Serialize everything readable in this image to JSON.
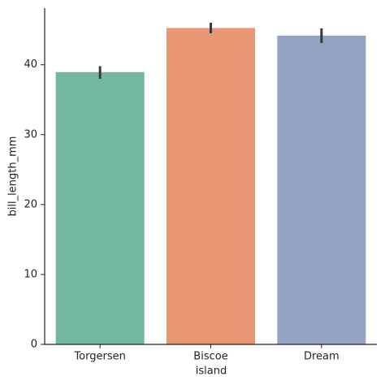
{
  "chart_data": {
    "type": "bar",
    "x_label": "island",
    "y_label": "bill_length_mm",
    "categories": [
      "Torgersen",
      "Biscoe",
      "Dream"
    ],
    "values": [
      38.95,
      45.26,
      44.17
    ],
    "ci": [
      [
        38.0,
        39.8
      ],
      [
        44.5,
        46.0
      ],
      [
        43.1,
        45.2
      ]
    ],
    "colors": [
      "#73b7a1",
      "#e99674",
      "#94a3c3"
    ],
    "ylim": [
      0,
      48.1
    ],
    "yticks": [
      0,
      10,
      20,
      30,
      40
    ]
  }
}
